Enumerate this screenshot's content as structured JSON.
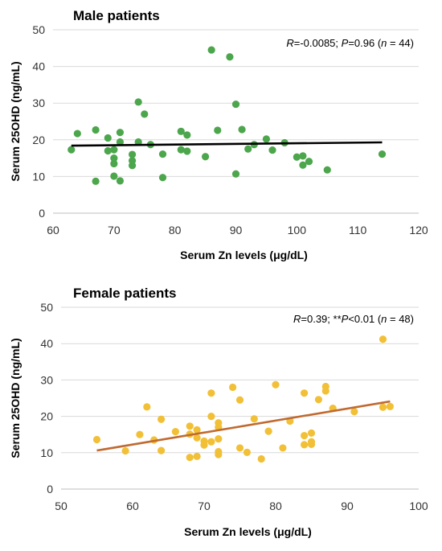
{
  "chart_data": [
    {
      "type": "scatter",
      "title": "Male patients",
      "annotation": {
        "R": "=-0.0085; ",
        "P": "=0.96 (",
        "n": " = 44)"
      },
      "xlabel": "Serum Zn levels (μg/dL)",
      "ylabel": "Serum 25OHD (ng/mL)",
      "xlim": [
        60,
        120
      ],
      "ylim": [
        0,
        50
      ],
      "xticks": [
        "60",
        "70",
        "80",
        "90",
        "100",
        "110",
        "120"
      ],
      "yticks": [
        "0",
        "10",
        "20",
        "30",
        "40",
        "50"
      ],
      "grid": true,
      "point_color": "#4ca64c",
      "trend_color": "#000000",
      "trendline": {
        "x": [
          63,
          114
        ],
        "y": [
          18.4,
          19.3
        ]
      },
      "points": [
        {
          "x": 63,
          "y": 17.3
        },
        {
          "x": 64,
          "y": 21.7
        },
        {
          "x": 67,
          "y": 22.7
        },
        {
          "x": 67,
          "y": 8.7
        },
        {
          "x": 69,
          "y": 20.5
        },
        {
          "x": 69,
          "y": 17.0
        },
        {
          "x": 70,
          "y": 17.3
        },
        {
          "x": 70,
          "y": 15.0
        },
        {
          "x": 70,
          "y": 13.5
        },
        {
          "x": 70,
          "y": 10.1
        },
        {
          "x": 71,
          "y": 22.0
        },
        {
          "x": 71,
          "y": 19.4
        },
        {
          "x": 71,
          "y": 8.8
        },
        {
          "x": 73,
          "y": 16.0
        },
        {
          "x": 73,
          "y": 14.3
        },
        {
          "x": 73,
          "y": 13.0
        },
        {
          "x": 74,
          "y": 30.3
        },
        {
          "x": 74,
          "y": 19.4
        },
        {
          "x": 75,
          "y": 27.0
        },
        {
          "x": 76,
          "y": 18.7
        },
        {
          "x": 78,
          "y": 16.1
        },
        {
          "x": 78,
          "y": 9.7
        },
        {
          "x": 81,
          "y": 22.3
        },
        {
          "x": 81,
          "y": 17.3
        },
        {
          "x": 82,
          "y": 21.3
        },
        {
          "x": 82,
          "y": 16.9
        },
        {
          "x": 85,
          "y": 15.4
        },
        {
          "x": 86,
          "y": 44.5
        },
        {
          "x": 87,
          "y": 22.6
        },
        {
          "x": 89,
          "y": 42.6
        },
        {
          "x": 90,
          "y": 29.7
        },
        {
          "x": 90,
          "y": 10.7
        },
        {
          "x": 91,
          "y": 22.8
        },
        {
          "x": 92,
          "y": 17.5
        },
        {
          "x": 93,
          "y": 18.7
        },
        {
          "x": 95,
          "y": 20.2
        },
        {
          "x": 96,
          "y": 17.2
        },
        {
          "x": 98,
          "y": 19.2
        },
        {
          "x": 100,
          "y": 15.3
        },
        {
          "x": 101,
          "y": 15.6
        },
        {
          "x": 101,
          "y": 13.1
        },
        {
          "x": 102,
          "y": 14.1
        },
        {
          "x": 105,
          "y": 11.8
        },
        {
          "x": 114,
          "y": 16.1
        }
      ]
    },
    {
      "type": "scatter",
      "title": "Female patients",
      "annotation": {
        "R": "=0.39; **",
        "P": "<0.01 (",
        "n": " = 48)"
      },
      "xlabel": "Serum Zn levels (μg/dL)",
      "ylabel": "Serum 25OHD (ng/mL)",
      "xlim": [
        50,
        100
      ],
      "ylim": [
        0,
        50
      ],
      "xticks": [
        "50",
        "60",
        "70",
        "80",
        "90",
        "100"
      ],
      "yticks": [
        "0",
        "10",
        "20",
        "30",
        "40",
        "50"
      ],
      "grid": true,
      "point_color": "#f2c037",
      "trend_color": "#c06a30",
      "trendline": {
        "x": [
          55,
          96
        ],
        "y": [
          10.6,
          24.1
        ]
      },
      "points": [
        {
          "x": 55,
          "y": 13.6
        },
        {
          "x": 59,
          "y": 10.5
        },
        {
          "x": 61,
          "y": 15.0
        },
        {
          "x": 62,
          "y": 22.6
        },
        {
          "x": 63,
          "y": 13.5
        },
        {
          "x": 64,
          "y": 19.2
        },
        {
          "x": 64,
          "y": 10.6
        },
        {
          "x": 66,
          "y": 15.8
        },
        {
          "x": 68,
          "y": 17.3
        },
        {
          "x": 68,
          "y": 15.1
        },
        {
          "x": 68,
          "y": 8.7
        },
        {
          "x": 69,
          "y": 16.3
        },
        {
          "x": 69,
          "y": 14.1
        },
        {
          "x": 69,
          "y": 9.0
        },
        {
          "x": 70,
          "y": 13.2
        },
        {
          "x": 70,
          "y": 12.1
        },
        {
          "x": 71,
          "y": 26.4
        },
        {
          "x": 71,
          "y": 20.0
        },
        {
          "x": 71,
          "y": 13.0
        },
        {
          "x": 72,
          "y": 18.2
        },
        {
          "x": 72,
          "y": 17.0
        },
        {
          "x": 72,
          "y": 13.8
        },
        {
          "x": 72,
          "y": 10.3
        },
        {
          "x": 72,
          "y": 9.5
        },
        {
          "x": 74,
          "y": 28.0
        },
        {
          "x": 75,
          "y": 24.5
        },
        {
          "x": 75,
          "y": 11.3
        },
        {
          "x": 76,
          "y": 10.1
        },
        {
          "x": 77,
          "y": 19.3
        },
        {
          "x": 78,
          "y": 8.3
        },
        {
          "x": 79,
          "y": 15.9
        },
        {
          "x": 80,
          "y": 28.7
        },
        {
          "x": 81,
          "y": 11.3
        },
        {
          "x": 82,
          "y": 18.7
        },
        {
          "x": 84,
          "y": 26.4
        },
        {
          "x": 84,
          "y": 14.7
        },
        {
          "x": 84,
          "y": 12.2
        },
        {
          "x": 85,
          "y": 15.4
        },
        {
          "x": 85,
          "y": 13.0
        },
        {
          "x": 85,
          "y": 12.3
        },
        {
          "x": 86,
          "y": 24.6
        },
        {
          "x": 87,
          "y": 28.2
        },
        {
          "x": 87,
          "y": 27.0
        },
        {
          "x": 88,
          "y": 22.2
        },
        {
          "x": 91,
          "y": 21.3
        },
        {
          "x": 95,
          "y": 41.2
        },
        {
          "x": 95,
          "y": 22.5
        },
        {
          "x": 96,
          "y": 22.7
        }
      ]
    }
  ]
}
